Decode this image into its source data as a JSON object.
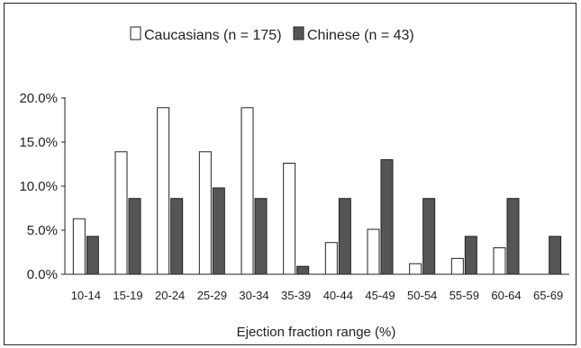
{
  "chart_data": {
    "type": "bar",
    "title": "",
    "xlabel": "Ejection fraction range (%)",
    "ylabel": "",
    "categories": [
      "10-14",
      "15-19",
      "20-24",
      "25-29",
      "30-34",
      "35-39",
      "40-44",
      "45-49",
      "50-54",
      "55-59",
      "60-64",
      "65-69"
    ],
    "series": [
      {
        "name": "Caucasians (n = 175)",
        "color": "#ffffff",
        "values": [
          6.3,
          13.9,
          18.9,
          13.9,
          18.9,
          12.6,
          3.6,
          5.1,
          1.2,
          1.8,
          3.0,
          0.0
        ]
      },
      {
        "name": "Chinese (n = 43)",
        "color": "#555555",
        "values": [
          4.3,
          8.6,
          8.6,
          9.8,
          8.6,
          0.9,
          8.6,
          13.0,
          8.6,
          4.3,
          8.6,
          4.3
        ]
      }
    ],
    "ylim": [
      0,
      20
    ],
    "yticks": [
      "0.0%",
      "5.0%",
      "10.0%",
      "15.0%",
      "20.0%"
    ],
    "legend_position": "top-center",
    "grid": false
  }
}
